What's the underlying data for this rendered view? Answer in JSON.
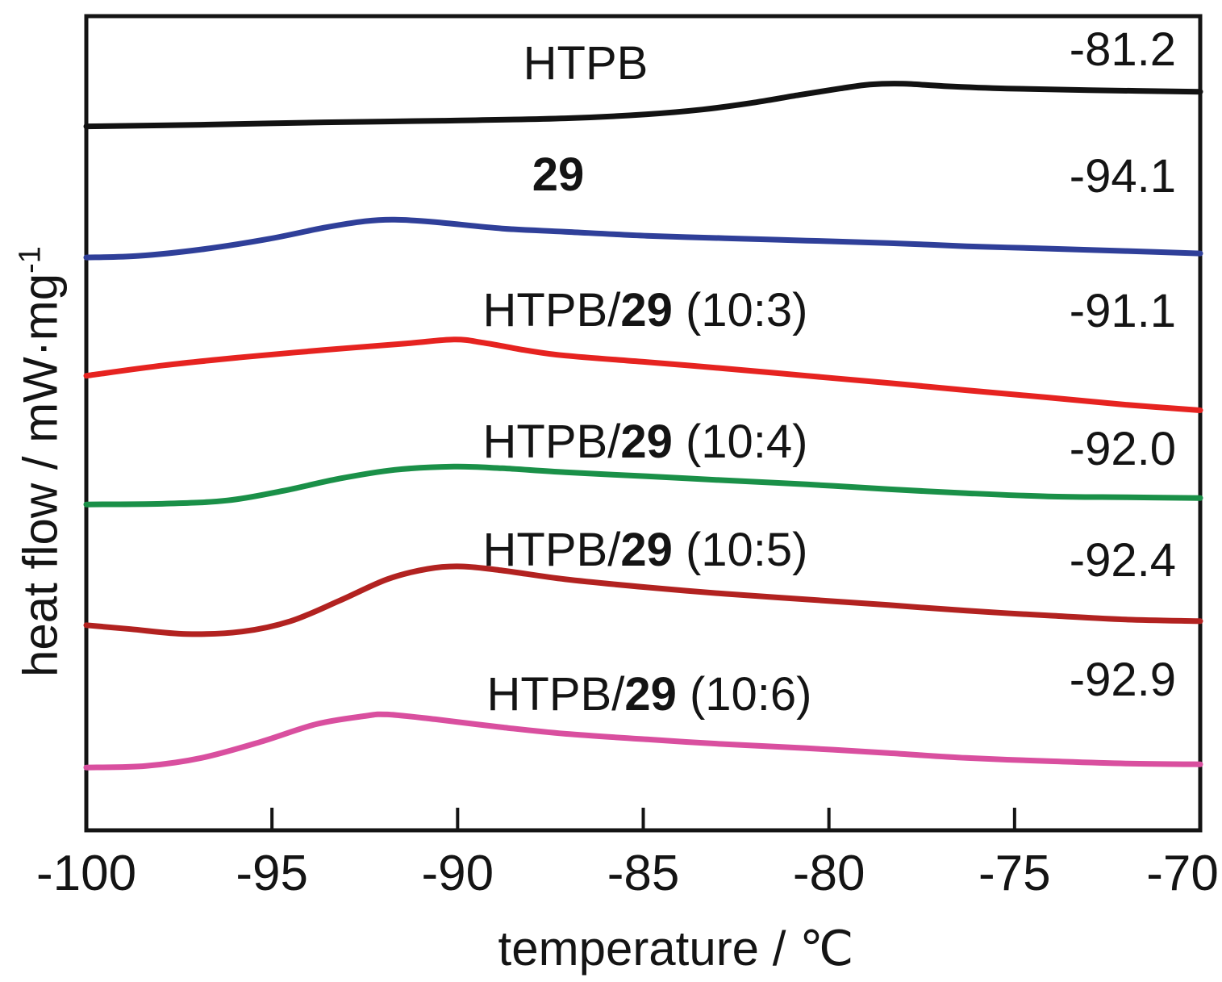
{
  "chart_data": {
    "type": "line",
    "title": "",
    "xlabel": "temperature / ℃",
    "ylabel": {
      "main": "heat flow / mW·mg",
      "sup": "-1"
    },
    "xlim": [
      -100,
      -70
    ],
    "ylim": [
      0,
      1012
    ],
    "ylim_note": "heat flow in arbitrary units; six DSC curves vertically offset, no y-axis ticks shown",
    "x_ticks": [
      -100,
      -95,
      -90,
      -85,
      -80,
      -75,
      -70
    ],
    "x_tick_labels": [
      "-100",
      "-95",
      "-90",
      "-85",
      "-80",
      "-75",
      "-70"
    ],
    "grid": false,
    "legend": "none (curves labeled inline with glass-transition temperature values)",
    "series": [
      {
        "id": "htpb",
        "label_prefix": "HTPB",
        "label_bold": "",
        "label_suffix": "",
        "tg_label": "-81.2",
        "color": "#121212",
        "points": [
          [
            -100,
            875
          ],
          [
            -96.9,
            877
          ],
          [
            -93.6,
            880
          ],
          [
            -90.4,
            882
          ],
          [
            -87.1,
            885
          ],
          [
            -84.9,
            890
          ],
          [
            -83.4,
            896
          ],
          [
            -82.1,
            904
          ],
          [
            -80.8,
            914
          ],
          [
            -79.7,
            922
          ],
          [
            -78.9,
            927
          ],
          [
            -78,
            928
          ],
          [
            -76.9,
            925
          ],
          [
            -75.2,
            922
          ],
          [
            -73,
            920
          ],
          [
            -70,
            918
          ]
        ]
      },
      {
        "id": "29",
        "label_prefix": "",
        "label_bold": "29",
        "label_suffix": "",
        "tg_label": "-94.1",
        "color": "#2f3f99",
        "points": [
          [
            -100,
            712
          ],
          [
            -98.6,
            714
          ],
          [
            -96.9,
            722
          ],
          [
            -95.1,
            735
          ],
          [
            -93.6,
            749
          ],
          [
            -92.5,
            757
          ],
          [
            -91.7,
            759
          ],
          [
            -90.6,
            756
          ],
          [
            -88.8,
            748
          ],
          [
            -87.1,
            744
          ],
          [
            -84.9,
            739
          ],
          [
            -82.8,
            736
          ],
          [
            -80.6,
            733
          ],
          [
            -78.4,
            730
          ],
          [
            -76.3,
            726
          ],
          [
            -74.1,
            723
          ],
          [
            -72,
            720
          ],
          [
            -70,
            717
          ]
        ]
      },
      {
        "id": "htpb-29-10-3",
        "label_prefix": "HTPB/",
        "label_bold": "29",
        "label_suffix": " (10:3)",
        "tg_label": "-91.1",
        "color": "#e62320",
        "points": [
          [
            -100,
            565
          ],
          [
            -97.9,
            578
          ],
          [
            -95.8,
            588
          ],
          [
            -93.6,
            597
          ],
          [
            -91.4,
            605
          ],
          [
            -90.1,
            610
          ],
          [
            -89.3,
            606
          ],
          [
            -88.2,
            597
          ],
          [
            -87.1,
            590
          ],
          [
            -84.9,
            582
          ],
          [
            -82.8,
            574
          ],
          [
            -80.6,
            565
          ],
          [
            -78.4,
            556
          ],
          [
            -76.3,
            547
          ],
          [
            -74.1,
            538
          ],
          [
            -72,
            529
          ],
          [
            -70,
            522
          ]
        ]
      },
      {
        "id": "htpb-29-10-4",
        "label_prefix": "HTPB/",
        "label_bold": "29",
        "label_suffix": " (10:4)",
        "tg_label": "-92.0",
        "color": "#1a9048",
        "points": [
          [
            -100,
            405
          ],
          [
            -97.9,
            406
          ],
          [
            -96.2,
            410
          ],
          [
            -94.7,
            422
          ],
          [
            -93.2,
            437
          ],
          [
            -91.7,
            448
          ],
          [
            -90.1,
            452
          ],
          [
            -88.8,
            450
          ],
          [
            -87.1,
            445
          ],
          [
            -84.9,
            440
          ],
          [
            -82.8,
            435
          ],
          [
            -80.6,
            430
          ],
          [
            -78.4,
            424
          ],
          [
            -76.3,
            419
          ],
          [
            -74.1,
            415
          ],
          [
            -72,
            414
          ],
          [
            -70,
            413
          ]
        ]
      },
      {
        "id": "htpb-29-10-5",
        "label_prefix": "HTPB/",
        "label_bold": "29",
        "label_suffix": " (10:5)",
        "tg_label": "-92.4",
        "color": "#b22220",
        "points": [
          [
            -100,
            255
          ],
          [
            -98.8,
            250
          ],
          [
            -97.3,
            244
          ],
          [
            -95.8,
            247
          ],
          [
            -94.5,
            260
          ],
          [
            -93.2,
            285
          ],
          [
            -91.9,
            312
          ],
          [
            -90.8,
            325
          ],
          [
            -89.9,
            328
          ],
          [
            -88.8,
            323
          ],
          [
            -87.1,
            312
          ],
          [
            -84.9,
            302
          ],
          [
            -82.8,
            294
          ],
          [
            -80.6,
            287
          ],
          [
            -78.4,
            280
          ],
          [
            -76.3,
            273
          ],
          [
            -74.1,
            267
          ],
          [
            -72,
            262
          ],
          [
            -70,
            260
          ]
        ]
      },
      {
        "id": "htpb-29-10-6",
        "label_prefix": "HTPB/",
        "label_bold": "29",
        "label_suffix": " (10:6)",
        "tg_label": "-92.9",
        "color": "#d94f9f",
        "points": [
          [
            -100,
            78
          ],
          [
            -98.4,
            80
          ],
          [
            -96.9,
            90
          ],
          [
            -95.3,
            110
          ],
          [
            -93.8,
            132
          ],
          [
            -92.5,
            142
          ],
          [
            -91.9,
            144
          ],
          [
            -90.6,
            138
          ],
          [
            -88.8,
            128
          ],
          [
            -87.1,
            120
          ],
          [
            -84.9,
            113
          ],
          [
            -82.8,
            107
          ],
          [
            -80.6,
            102
          ],
          [
            -78.4,
            96
          ],
          [
            -76.3,
            90
          ],
          [
            -74.1,
            86
          ],
          [
            -72,
            83
          ],
          [
            -70,
            82
          ]
        ]
      }
    ]
  }
}
